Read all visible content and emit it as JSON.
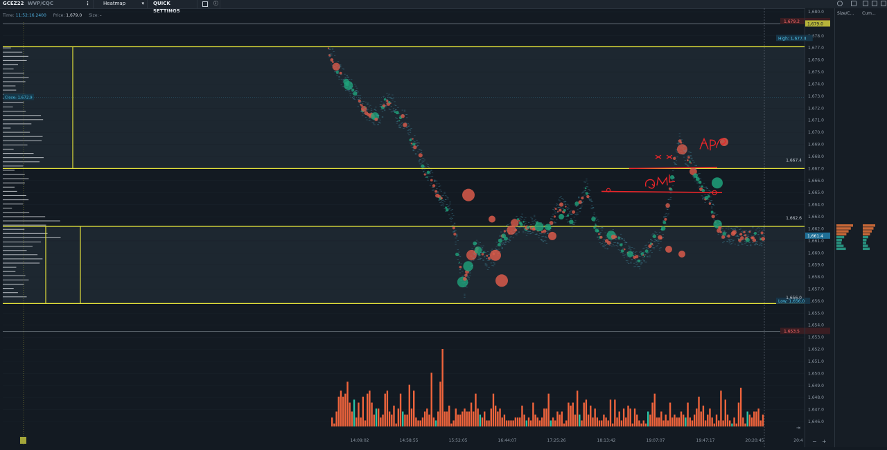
{
  "toolbar": {
    "symbol": "GCEZ22",
    "symbol_sub": "WVP/CQC",
    "menu_dots": "⋮",
    "view_mode": "Heatmap",
    "view_mode_caret": "▾",
    "quick_settings": "QUICK SETTINGS",
    "info_glyph": "ⓘ"
  },
  "info": {
    "time_label": "Time:",
    "time_value": "11:52:16.2400",
    "price_label": "Price:",
    "price_value": "1,679.0",
    "size_label": "Size:",
    "size_value": "-"
  },
  "right_panel": {
    "columns": [
      "Size/C...",
      "Cum..."
    ],
    "icons": [
      "sync-icon",
      "screen-icon",
      "grid-icon",
      "cup-icon",
      "lock-icon"
    ]
  },
  "colors": {
    "background": "#131a22",
    "panel": "#1d252e",
    "yellow_line": "#e0de3a",
    "up": "#1fa27a",
    "down": "#d95a4a",
    "volume": "#f0643c",
    "volume_up": "#2bc4a6",
    "annotation": "#e8262a"
  },
  "chart_data": {
    "type": "heatmap",
    "price_axis": {
      "min": 1645.6,
      "max": 1680.0,
      "ticks": [
        "1,680.0",
        "1,679.0",
        "1,678.0",
        "1,677.0",
        "1,676.0",
        "1,675.0",
        "1,674.0",
        "1,673.0",
        "1,672.0",
        "1,671.0",
        "1,670.0",
        "1,669.0",
        "1,668.0",
        "1,667.0",
        "1,666.0",
        "1,665.0",
        "1,664.0",
        "1,663.0",
        "1,662.0",
        "1,661.0",
        "1,660.0",
        "1,659.0",
        "1,658.0",
        "1,657.0",
        "1,656.0",
        "1,655.0",
        "1,654.0",
        "1,653.0",
        "1,652.0",
        "1,651.0",
        "1,650.0",
        "1,649.0",
        "1,648.0",
        "1,647.0",
        "1,646.0"
      ]
    },
    "time_axis": {
      "ticks": [
        "14:09:02",
        "14:58:55",
        "15:52:05",
        "16:44:07",
        "17:25:26",
        "18:13:42",
        "19:07:07",
        "19:47:17",
        "20:20:45",
        "20:4"
      ]
    },
    "price_tags": [
      {
        "label": "1,679.2",
        "price": 1679.2,
        "style": "red"
      },
      {
        "label": "1,679.0",
        "price": 1679.0,
        "style": "yellow"
      },
      {
        "label": "High: 1,677.8",
        "price": 1677.8,
        "style": "blue"
      },
      {
        "label": "1,661.4",
        "price": 1661.4,
        "style": "blue-solid"
      },
      {
        "label": "Low: 1,656.0",
        "price": 1656.0,
        "style": "blue"
      },
      {
        "label": "1,653.5",
        "price": 1653.5,
        "style": "red"
      }
    ],
    "level_labels": [
      {
        "label": "1,667.4",
        "price": 1667.4
      },
      {
        "label": "1,662.6",
        "price": 1662.6
      },
      {
        "label": "1,656.0",
        "price": 1656.0
      }
    ],
    "close_label": {
      "label": "Close: 1,672.9",
      "price": 1672.9
    },
    "yellow_levels": [
      1677.1,
      1667.0,
      1662.2,
      1655.8
    ],
    "price_path": [
      [
        0.0,
        1676.9
      ],
      [
        0.015,
        1675.5
      ],
      [
        0.03,
        1674.6
      ],
      [
        0.045,
        1674.0
      ],
      [
        0.06,
        1673.3
      ],
      [
        0.075,
        1672.2
      ],
      [
        0.09,
        1671.7
      ],
      [
        0.105,
        1671.3
      ],
      [
        0.118,
        1671.6
      ],
      [
        0.13,
        1672.8
      ],
      [
        0.145,
        1672.4
      ],
      [
        0.16,
        1671.2
      ],
      [
        0.175,
        1671.1
      ],
      [
        0.19,
        1669.4
      ],
      [
        0.205,
        1668.5
      ],
      [
        0.22,
        1667.0
      ],
      [
        0.235,
        1666.1
      ],
      [
        0.25,
        1665.1
      ],
      [
        0.265,
        1664.3
      ],
      [
        0.28,
        1663.4
      ],
      [
        0.29,
        1661.6
      ],
      [
        0.3,
        1659.2
      ],
      [
        0.31,
        1657.0
      ],
      [
        0.32,
        1658.4
      ],
      [
        0.335,
        1660.5
      ],
      [
        0.35,
        1660.0
      ],
      [
        0.365,
        1659.4
      ],
      [
        0.38,
        1659.8
      ],
      [
        0.395,
        1661.1
      ],
      [
        0.41,
        1661.6
      ],
      [
        0.425,
        1662.1
      ],
      [
        0.44,
        1662.6
      ],
      [
        0.455,
        1662.0
      ],
      [
        0.47,
        1662.4
      ],
      [
        0.485,
        1661.9
      ],
      [
        0.5,
        1661.4
      ],
      [
        0.515,
        1662.9
      ],
      [
        0.53,
        1664.0
      ],
      [
        0.545,
        1663.5
      ],
      [
        0.56,
        1662.8
      ],
      [
        0.575,
        1664.1
      ],
      [
        0.59,
        1665.5
      ],
      [
        0.6,
        1664.6
      ],
      [
        0.61,
        1662.6
      ],
      [
        0.625,
        1661.4
      ],
      [
        0.64,
        1661.1
      ],
      [
        0.655,
        1661.2
      ],
      [
        0.67,
        1660.8
      ],
      [
        0.685,
        1660.0
      ],
      [
        0.7,
        1659.6
      ],
      [
        0.715,
        1659.3
      ],
      [
        0.73,
        1660.0
      ],
      [
        0.745,
        1661.0
      ],
      [
        0.76,
        1661.0
      ],
      [
        0.775,
        1663.1
      ],
      [
        0.785,
        1665.0
      ],
      [
        0.795,
        1667.5
      ],
      [
        0.805,
        1669.5
      ],
      [
        0.815,
        1668.2
      ],
      [
        0.83,
        1667.6
      ],
      [
        0.845,
        1666.4
      ],
      [
        0.86,
        1665.1
      ],
      [
        0.875,
        1664.5
      ],
      [
        0.89,
        1662.6
      ],
      [
        0.905,
        1661.5
      ],
      [
        0.92,
        1661.4
      ]
    ],
    "volume_scale_max": 26,
    "volume": [
      3,
      1,
      5,
      10,
      12,
      10,
      11,
      15,
      8,
      5,
      9,
      3,
      8,
      3,
      10,
      2,
      11,
      12,
      8,
      4,
      6,
      6,
      3,
      4,
      11,
      12,
      5,
      4,
      7,
      1,
      6,
      11,
      5,
      4,
      4,
      14,
      6,
      12,
      3,
      2,
      2,
      3,
      5,
      6,
      4,
      18,
      3,
      2,
      5,
      15,
      26,
      5,
      5,
      7,
      1,
      2,
      6,
      4,
      4,
      5,
      6,
      5,
      5,
      8,
      5,
      11,
      6,
      4,
      3,
      5,
      2,
      2,
      6,
      11,
      7,
      5,
      6,
      3,
      4,
      2,
      2,
      2,
      2,
      3,
      3,
      3,
      7,
      4,
      2,
      3,
      2,
      8,
      4,
      3,
      2,
      3,
      6,
      6,
      11,
      2,
      3,
      2,
      5,
      4,
      5,
      1,
      2,
      8,
      7,
      8,
      4,
      12,
      4,
      2,
      8,
      9,
      4,
      7,
      3,
      6,
      3,
      2,
      2,
      4,
      3,
      2,
      9,
      1,
      9,
      3,
      5,
      2,
      6,
      3,
      7,
      6,
      1,
      6,
      4,
      2,
      1,
      2,
      1,
      5,
      4,
      8,
      11,
      3,
      3,
      5,
      2,
      4,
      2,
      8,
      3,
      4,
      3,
      3,
      5,
      4,
      3,
      8,
      3,
      2,
      4,
      6,
      10,
      5,
      7,
      2,
      4,
      6,
      3,
      1,
      4,
      2,
      12,
      2,
      9,
      4,
      2,
      1,
      3,
      1,
      8,
      13,
      3,
      1,
      5,
      4,
      3,
      5,
      5,
      6,
      2,
      4
    ],
    "volume_up_index": [
      10,
      20,
      32,
      47,
      67,
      88,
      99,
      112,
      143,
      160,
      181,
      188
    ]
  }
}
